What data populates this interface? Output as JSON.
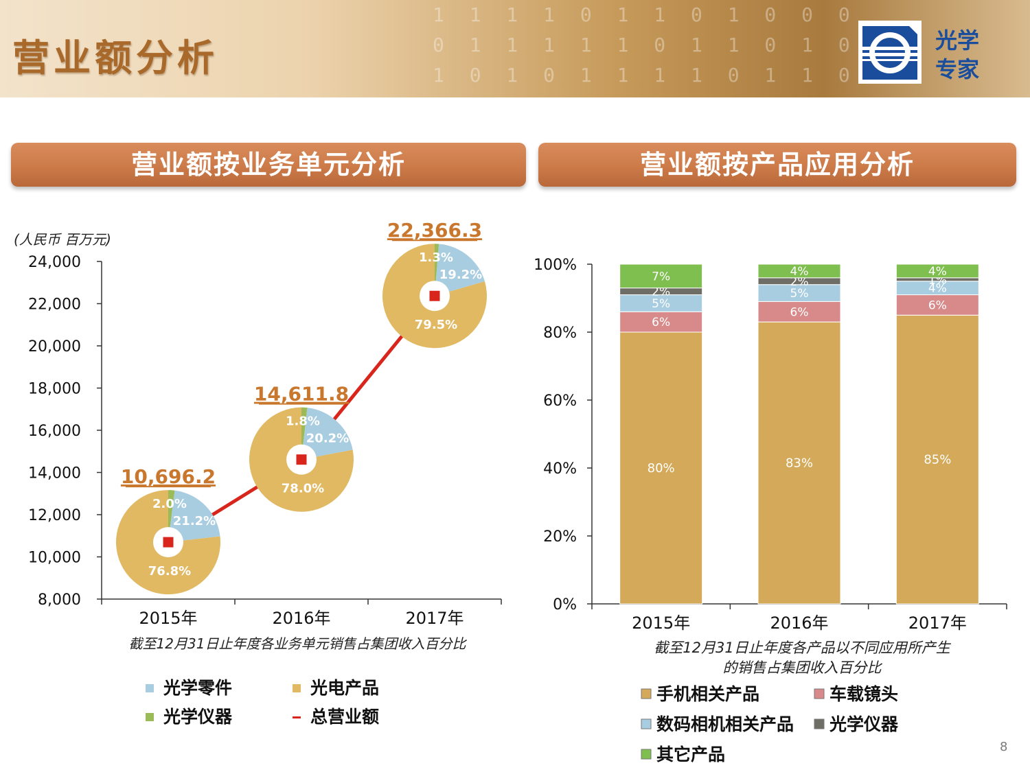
{
  "header": {
    "title": "营业额分析",
    "logo_text_line1": "光学",
    "logo_text_line2": "专家",
    "binary_rows": [
      "1 1 1 1 0 1 1 0 1 0 0 0",
      "0 1 1 1 1 1 0 1 1 0 1 0",
      "1 0 1 0 1 1 1 1 0 1 1 0"
    ]
  },
  "page_number": "8",
  "left_panel": {
    "banner": "营业额按业务单元分析",
    "unit_label": "(人民币 百万元)",
    "caption": "截至12月31日止年度各业务单元销售占集团收入百分比",
    "legend": [
      {
        "label": "光学零件",
        "color": "#a9cde0",
        "marker": "square"
      },
      {
        "label": "光电产品",
        "color": "#e1b962",
        "marker": "square"
      },
      {
        "label": "光学仪器",
        "color": "#9bbb59",
        "marker": "square"
      },
      {
        "label": "总营业额",
        "color": "#d9261c",
        "marker": "line"
      }
    ]
  },
  "right_panel": {
    "banner": "营业额按产品应用分析",
    "caption_line1": "截至12月31日止年度各产品以不同应用所产生",
    "caption_line2": "的销售占集团收入百分比",
    "legend": [
      {
        "label": "手机相关产品",
        "color": "#d4aa5a"
      },
      {
        "label": "车载镜头",
        "color": "#d88a8a"
      },
      {
        "label": "数码相机相关产品",
        "color": "#a9cde0"
      },
      {
        "label": "光学仪器",
        "color": "#6e6e66"
      },
      {
        "label": "其它产品",
        "color": "#7fbf4f"
      }
    ]
  },
  "chart_data": [
    {
      "type": "line",
      "title": "营业额按业务单元分析",
      "ylabel": "(人民币 百万元)",
      "categories": [
        "2015年",
        "2016年",
        "2017年"
      ],
      "ylim": [
        8000,
        24000
      ],
      "yticks": [
        8000,
        10000,
        12000,
        14000,
        16000,
        18000,
        20000,
        22000,
        24000
      ],
      "ytick_labels": [
        "8,000",
        "10,000",
        "12,000",
        "14,000",
        "16,000",
        "18,000",
        "20,000",
        "22,000",
        "24,000"
      ],
      "series": [
        {
          "name": "总营业额",
          "color": "#d9261c",
          "values": [
            10696.2,
            14611.8,
            22366.3
          ],
          "value_labels": [
            "10,696.2",
            "14,611.8",
            "22,366.3"
          ]
        }
      ],
      "pies": [
        {
          "category": "2015年",
          "slices": [
            {
              "name": "光学零件",
              "value": 21.2,
              "label": "21.2%",
              "color": "#a9cde0"
            },
            {
              "name": "光电产品",
              "value": 76.8,
              "label": "76.8%",
              "color": "#e1b962"
            },
            {
              "name": "光学仪器",
              "value": 2.0,
              "label": "2.0%",
              "color": "#9bbb59"
            }
          ]
        },
        {
          "category": "2016年",
          "slices": [
            {
              "name": "光学零件",
              "value": 20.2,
              "label": "20.2%",
              "color": "#a9cde0"
            },
            {
              "name": "光电产品",
              "value": 78.0,
              "label": "78.0%",
              "color": "#e1b962"
            },
            {
              "name": "光学仪器",
              "value": 1.8,
              "label": "1.8%",
              "color": "#9bbb59"
            }
          ]
        },
        {
          "category": "2017年",
          "slices": [
            {
              "name": "光学零件",
              "value": 19.2,
              "label": "19.2%",
              "color": "#a9cde0"
            },
            {
              "name": "光电产品",
              "value": 79.5,
              "label": "79.5%",
              "color": "#e1b962"
            },
            {
              "name": "光学仪器",
              "value": 1.3,
              "label": "1.3%",
              "color": "#9bbb59"
            }
          ]
        }
      ],
      "grid": false,
      "legend_position": "bottom"
    },
    {
      "type": "bar",
      "stacked": true,
      "title": "营业额按产品应用分析",
      "categories": [
        "2015年",
        "2016年",
        "2017年"
      ],
      "ylim": [
        0,
        100
      ],
      "yticks": [
        0,
        20,
        40,
        60,
        80,
        100
      ],
      "ytick_labels": [
        "0%",
        "20%",
        "40%",
        "60%",
        "80%",
        "100%"
      ],
      "series": [
        {
          "name": "手机相关产品",
          "color": "#d4aa5a",
          "values": [
            80,
            83,
            85
          ],
          "labels": [
            "80%",
            "83%",
            "85%"
          ]
        },
        {
          "name": "车载镜头",
          "color": "#d88a8a",
          "values": [
            6,
            6,
            6
          ],
          "labels": [
            "6%",
            "6%",
            "6%"
          ]
        },
        {
          "name": "数码相机相关产品",
          "color": "#a9cde0",
          "values": [
            5,
            5,
            4
          ],
          "labels": [
            "5%",
            "5%",
            "4%"
          ]
        },
        {
          "name": "光学仪器",
          "color": "#6e6e66",
          "values": [
            2,
            2,
            1
          ],
          "labels": [
            "2%",
            "2%",
            "1%"
          ]
        },
        {
          "name": "其它产品",
          "color": "#7fbf4f",
          "values": [
            7,
            4,
            4
          ],
          "labels": [
            "7%",
            "4%",
            "4%"
          ]
        }
      ],
      "grid": false,
      "legend_position": "bottom"
    }
  ]
}
